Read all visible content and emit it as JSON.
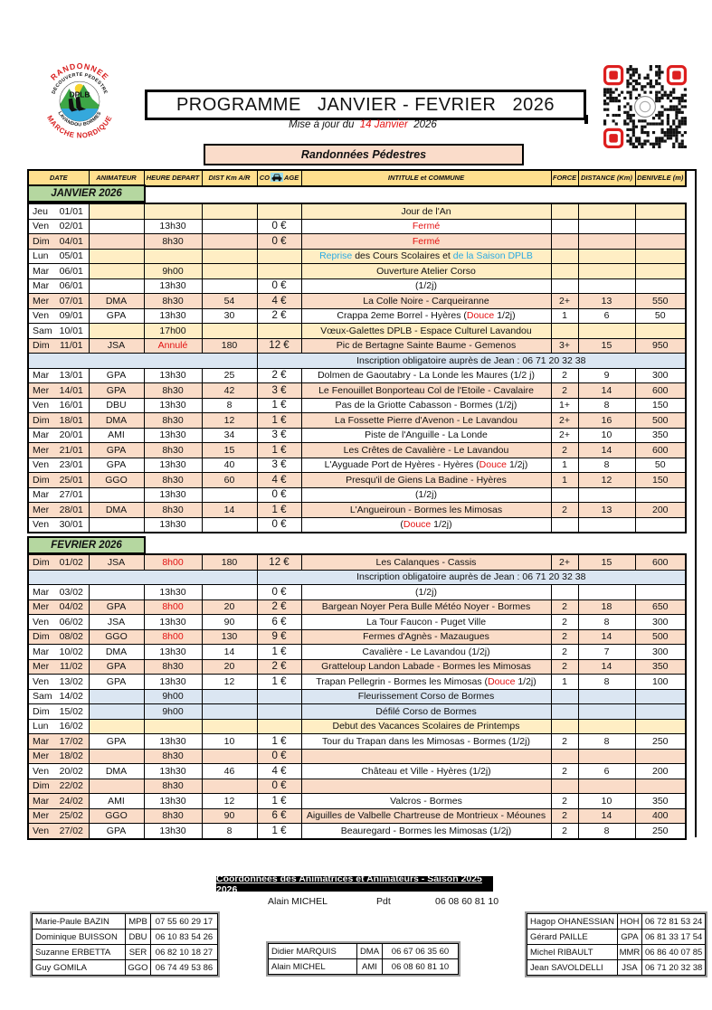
{
  "header": {
    "title": "PROGRAMME   JANVIER - FEVRIER   2026",
    "update_prefix": "Mise à jour du  ",
    "update_date": "14 Janvier",
    "update_year": "  2026",
    "banner": "Randonnées Pédestres",
    "logo": {
      "top": "RANDONNEE",
      "inner_top": "DECOUVERTE PEDESTRE",
      "center": "DPLB",
      "inner_bottom": "LAVANDOU BORMES",
      "bottom": "MARCHE NORDIQUE"
    }
  },
  "colors": {
    "header_gold": "#ffdf8e",
    "row_pink": "#fadcc8",
    "row_cream": "#ffeec4",
    "row_blue": "#dbe6f2",
    "section_green": "#b5d7a0",
    "accent_red": "#e31212",
    "accent_cyan": "#29abe2"
  },
  "table": {
    "columns": {
      "date": "DATE",
      "anim": "ANIMATEUR",
      "heure": "HEURE DEPART",
      "dist": "DIST Km A/R",
      "co_prefix": "CO",
      "co_suffix": "AGE",
      "intitule": "INTITULE et COMMUNE",
      "force": "FORCE",
      "distance": "DISTANCE (Km)",
      "denivele": "DENIVELE (m)"
    },
    "sections": [
      {
        "label": "JANVIER 2026",
        "rows": [
          {
            "day": "Jeu",
            "date": "01/01",
            "bg": "cream",
            "date_bg": "white",
            "anim": "",
            "heure": "",
            "dist": "",
            "euro": "",
            "int": [
              {
                "t": "Jour de l'An"
              }
            ],
            "force": "",
            "km": "",
            "den": ""
          },
          {
            "day": "Ven",
            "date": "02/01",
            "bg": "white",
            "anim": "",
            "heure": "13h30",
            "dist": "",
            "euro": "0 €",
            "int": [
              {
                "t": "Fermé",
                "c": "red"
              }
            ],
            "force": "",
            "km": "",
            "den": ""
          },
          {
            "day": "Dim",
            "date": "04/01",
            "bg": "pink",
            "anim": "",
            "heure": "8h30",
            "dist": "",
            "euro": "0 €",
            "int": [
              {
                "t": "Fermé",
                "c": "red"
              }
            ],
            "force": "",
            "km": "",
            "den": ""
          },
          {
            "day": "Lun",
            "date": "05/01",
            "bg": "cream",
            "date_bg": "white",
            "anim": "",
            "heure": "",
            "dist": "",
            "euro": "",
            "int": [
              {
                "t": "Reprise",
                "c": "cyan"
              },
              {
                "t": " des Cours Scolaires et "
              },
              {
                "t": "de la Saison DPLB",
                "c": "cyan"
              }
            ],
            "force": "",
            "km": "",
            "den": ""
          },
          {
            "day": "Mar",
            "date": "06/01",
            "bg": "cream",
            "date_bg": "white",
            "anim": "",
            "heure": "9h00",
            "dist": "",
            "euro": "",
            "int": [
              {
                "t": "Ouverture Atelier Corso"
              }
            ],
            "force": "",
            "km": "",
            "den": ""
          },
          {
            "day": "Mar",
            "date": "06/01",
            "bg": "white",
            "anim": "",
            "heure": "13h30",
            "dist": "",
            "euro": "0 €",
            "int": [
              {
                "t": "(1/2j)"
              }
            ],
            "force": "",
            "km": "",
            "den": ""
          },
          {
            "day": "Mer",
            "date": "07/01",
            "bg": "pink",
            "anim": "DMA",
            "heure": "8h30",
            "dist": "54",
            "euro": "4 €",
            "int": [
              {
                "t": "La Colle Noire - Carqueiranne"
              }
            ],
            "force": "2+",
            "km": "13",
            "den": "550"
          },
          {
            "day": "Ven",
            "date": "09/01",
            "bg": "white",
            "anim": "GPA",
            "heure": "13h30",
            "dist": "30",
            "euro": "2 €",
            "int": [
              {
                "t": "Crappa 2eme Borrel - Hyères ("
              },
              {
                "t": "Douce",
                "c": "red"
              },
              {
                "t": " 1/2j)"
              }
            ],
            "force": "1",
            "km": "6",
            "den": "50"
          },
          {
            "day": "Sam",
            "date": "10/01",
            "bg": "cream",
            "date_bg": "white",
            "anim": "",
            "heure": "17h00",
            "dist": "",
            "euro": "",
            "int": [
              {
                "t": "Vœux-Galettes DPLB - Espace Culturel Lavandou"
              }
            ],
            "force": "",
            "km": "",
            "den": ""
          },
          {
            "day": "Dim",
            "date": "11/01",
            "bg": "pink",
            "anim": "JSA",
            "heure": "Annulé",
            "heure_red": true,
            "dist": "180",
            "euro": "12 €",
            "int": [
              {
                "t": "Pic de Bertagne Sainte Baume - Gemenos"
              }
            ],
            "force": "3+",
            "km": "15",
            "den": "950"
          },
          {
            "type": "span",
            "text": "Inscription obligatoire auprès de Jean : 06 71 20 32 38"
          },
          {
            "day": "Mar",
            "date": "13/01",
            "bg": "white",
            "anim": "GPA",
            "heure": "13h30",
            "dist": "25",
            "euro": "2 €",
            "int": [
              {
                "t": "Dolmen de Gaoutabry - La Londe les Maures (1/2 j)"
              }
            ],
            "force": "2",
            "km": "9",
            "den": "300"
          },
          {
            "day": "Mer",
            "date": "14/01",
            "bg": "pink",
            "anim": "GPA",
            "heure": "8h30",
            "dist": "42",
            "euro": "3 €",
            "int": [
              {
                "t": "Le Fenouillet Bonporteau Col de l'Etoile - Cavalaire"
              }
            ],
            "force": "2",
            "km": "14",
            "den": "600"
          },
          {
            "day": "Ven",
            "date": "16/01",
            "bg": "white",
            "anim": "DBU",
            "heure": "13h30",
            "dist": "8",
            "euro": "1 €",
            "int": [
              {
                "t": "Pas de la Griotte Cabasson - Bormes (1/2j)"
              }
            ],
            "force": "1+",
            "km": "8",
            "den": "150"
          },
          {
            "day": "Dim",
            "date": "18/01",
            "bg": "pink",
            "anim": "DMA",
            "heure": "8h30",
            "dist": "12",
            "euro": "1 €",
            "int": [
              {
                "t": "La Fossette Pierre d'Avenon - Le Lavandou"
              }
            ],
            "force": "2+",
            "km": "16",
            "den": "500"
          },
          {
            "day": "Mar",
            "date": "20/01",
            "bg": "white",
            "anim": "AMI",
            "heure": "13h30",
            "dist": "34",
            "euro": "3 €",
            "int": [
              {
                "t": "Piste de l'Anguille - La Londe"
              }
            ],
            "force": "2+",
            "km": "10",
            "den": "350"
          },
          {
            "day": "Mer",
            "date": "21/01",
            "bg": "pink",
            "anim": "GPA",
            "heure": "8h30",
            "dist": "15",
            "euro": "1 €",
            "int": [
              {
                "t": "Les Crêtes de Cavalière - Le Lavandou"
              }
            ],
            "force": "2",
            "km": "14",
            "den": "600"
          },
          {
            "day": "Ven",
            "date": "23/01",
            "bg": "white",
            "anim": "GPA",
            "heure": "13h30",
            "dist": "40",
            "euro": "3 €",
            "int": [
              {
                "t": "L'Ayguade Port de Hyères - Hyères ("
              },
              {
                "t": "Douce",
                "c": "red"
              },
              {
                "t": " 1/2j)"
              }
            ],
            "force": "1",
            "km": "8",
            "den": "50"
          },
          {
            "day": "Dim",
            "date": "25/01",
            "bg": "pink",
            "anim": "GGO",
            "heure": "8h30",
            "dist": "60",
            "euro": "4 €",
            "int": [
              {
                "t": "Presqu'il de Giens La Badine - Hyères"
              }
            ],
            "force": "1",
            "km": "12",
            "den": "150"
          },
          {
            "day": "Mar",
            "date": "27/01",
            "bg": "white",
            "anim": "",
            "heure": "13h30",
            "dist": "",
            "euro": "0 €",
            "int": [
              {
                "t": "(1/2j)"
              }
            ],
            "force": "",
            "km": "",
            "den": ""
          },
          {
            "day": "Mer",
            "date": "28/01",
            "bg": "pink",
            "anim": "DMA",
            "heure": "8h30",
            "dist": "14",
            "euro": "1 €",
            "int": [
              {
                "t": "L'Angueiroun - Bormes les Mimosas"
              }
            ],
            "force": "2",
            "km": "13",
            "den": "200"
          },
          {
            "day": "Ven",
            "date": "30/01",
            "bg": "white",
            "anim": "",
            "heure": "13h30",
            "dist": "",
            "euro": "0 €",
            "int": [
              {
                "t": "("
              },
              {
                "t": "Douce",
                "c": "red"
              },
              {
                "t": " 1/2j)"
              }
            ],
            "force": "",
            "km": "",
            "den": ""
          }
        ]
      },
      {
        "label": "FEVRIER 2026",
        "rows": [
          {
            "day": "Dim",
            "date": "01/02",
            "bg": "pink",
            "anim": "JSA",
            "heure": "8h00",
            "heure_red": true,
            "dist": "180",
            "euro": "12 €",
            "int": [
              {
                "t": "Les Calanques - Cassis"
              }
            ],
            "force": "2+",
            "km": "15",
            "den": "600"
          },
          {
            "type": "span",
            "text": "Inscription obligatoire auprès de Jean : 06 71 20 32 38"
          },
          {
            "day": "Mar",
            "date": "03/02",
            "bg": "white",
            "anim": "",
            "heure": "13h30",
            "dist": "",
            "euro": "0 €",
            "int": [
              {
                "t": "(1/2j)"
              }
            ],
            "force": "",
            "km": "",
            "den": ""
          },
          {
            "day": "Mer",
            "date": "04/02",
            "bg": "pink",
            "anim": "GPA",
            "heure": "8h00",
            "heure_red": true,
            "dist": "20",
            "euro": "2 €",
            "int": [
              {
                "t": "Bargean Noyer Pera Bulle Météo Noyer - Bormes"
              }
            ],
            "force": "2",
            "km": "18",
            "den": "650"
          },
          {
            "day": "Ven",
            "date": "06/02",
            "bg": "white",
            "anim": "JSA",
            "heure": "13h30",
            "dist": "90",
            "euro": "6 €",
            "int": [
              {
                "t": "La Tour Faucon - Puget Ville"
              }
            ],
            "force": "2",
            "km": "8",
            "den": "300"
          },
          {
            "day": "Dim",
            "date": "08/02",
            "bg": "pink",
            "anim": "GGO",
            "heure": "8h00",
            "heure_red": true,
            "dist": "130",
            "euro": "9 €",
            "int": [
              {
                "t": "Fermes d'Agnès - Mazaugues"
              }
            ],
            "force": "2",
            "km": "14",
            "den": "500"
          },
          {
            "day": "Mar",
            "date": "10/02",
            "bg": "white",
            "anim": "DMA",
            "heure": "13h30",
            "dist": "14",
            "euro": "1 €",
            "int": [
              {
                "t": "Cavalière - Le Lavandou (1/2j)"
              }
            ],
            "force": "2",
            "km": "7",
            "den": "300"
          },
          {
            "day": "Mer",
            "date": "11/02",
            "bg": "pink",
            "anim": "GPA",
            "heure": "8h30",
            "dist": "20",
            "euro": "2 €",
            "int": [
              {
                "t": "Gratteloup Landon Labade - Bormes les Mimosas"
              }
            ],
            "force": "2",
            "km": "14",
            "den": "350"
          },
          {
            "day": "Ven",
            "date": "13/02",
            "bg": "white",
            "anim": "GPA",
            "heure": "13h30",
            "dist": "12",
            "euro": "1 €",
            "int": [
              {
                "t": "Trapan Pellegrin - Bormes les Mimosas ("
              },
              {
                "t": "Douce",
                "c": "red"
              },
              {
                "t": " 1/2j)"
              }
            ],
            "force": "1",
            "km": "8",
            "den": "100"
          },
          {
            "day": "Sam",
            "date": "14/02",
            "bg": "blue",
            "date_bg": "white",
            "anim": "",
            "heure": "9h00",
            "dist": "",
            "euro": "",
            "int": [
              {
                "t": "Fleurissement Corso de Bormes"
              }
            ],
            "force": "",
            "km": "",
            "den": ""
          },
          {
            "day": "Dim",
            "date": "15/02",
            "bg": "blue",
            "date_bg": "white",
            "anim": "",
            "heure": "9h00",
            "dist": "",
            "euro": "",
            "int": [
              {
                "t": "Défilé Corso de Bormes"
              }
            ],
            "force": "",
            "km": "",
            "den": ""
          },
          {
            "day": "Lun",
            "date": "16/02",
            "bg": "cream",
            "date_bg": "white",
            "anim": "",
            "heure": "",
            "dist": "",
            "euro": "",
            "int": [
              {
                "t": "Debut des Vacances Scolaires de Printemps"
              }
            ],
            "force": "",
            "km": "",
            "den": ""
          },
          {
            "day": "Mar",
            "date": "17/02",
            "bg": "white",
            "date_bg": "pink",
            "anim": "GPA",
            "heure": "13h30",
            "dist": "10",
            "euro": "1 €",
            "int": [
              {
                "t": "Tour du Trapan dans les Mimosas - Bormes (1/2j)"
              }
            ],
            "force": "2",
            "km": "8",
            "den": "250"
          },
          {
            "day": "Mer",
            "date": "18/02",
            "bg": "pink",
            "anim": "",
            "heure": "8h30",
            "dist": "",
            "euro": "0 €",
            "int": [],
            "force": "",
            "km": "",
            "den": ""
          },
          {
            "day": "Ven",
            "date": "20/02",
            "bg": "white",
            "anim": "DMA",
            "heure": "13h30",
            "dist": "46",
            "euro": "4 €",
            "int": [
              {
                "t": "Château et Ville - Hyères (1/2j)"
              }
            ],
            "force": "2",
            "km": "6",
            "den": "200"
          },
          {
            "day": "Dim",
            "date": "22/02",
            "bg": "pink",
            "anim": "",
            "heure": "8h30",
            "dist": "",
            "euro": "0 €",
            "int": [],
            "force": "",
            "km": "",
            "den": ""
          },
          {
            "day": "Mar",
            "date": "24/02",
            "bg": "white",
            "date_bg": "pink",
            "anim": "AMI",
            "heure": "13h30",
            "dist": "12",
            "euro": "1 €",
            "int": [
              {
                "t": "Valcros - Bormes"
              }
            ],
            "force": "2",
            "km": "10",
            "den": "350"
          },
          {
            "day": "Mer",
            "date": "25/02",
            "bg": "pink",
            "anim": "GGO",
            "heure": "8h30",
            "dist": "90",
            "euro": "6 €",
            "int": [
              {
                "t": "Aiguilles de Valbelle Chartreuse de Montrieux - Méounes"
              }
            ],
            "force": "2",
            "km": "14",
            "den": "400"
          },
          {
            "day": "Ven",
            "date": "27/02",
            "bg": "white",
            "date_bg": "pink",
            "anim": "GPA",
            "heure": "13h30",
            "dist": "8",
            "euro": "1 €",
            "int": [
              {
                "t": "Beauregard - Bormes les Mimosas (1/2j)"
              }
            ],
            "force": "2",
            "km": "8",
            "den": "250"
          }
        ]
      }
    ]
  },
  "contacts": {
    "title": "Coordonnées des Animatrices et Animateurs - Saison 2025 2026",
    "president": {
      "name": "Alain MICHEL",
      "role": "Pdt",
      "phone": "06 08 60 81 10"
    },
    "left": [
      {
        "name": "Marie-Paule BAZIN",
        "code": "MPB",
        "phone": "07 55 60 29 17"
      },
      {
        "name": "Dominique BUISSON",
        "code": "DBU",
        "phone": "06 10 83 54 26"
      },
      {
        "name": "Suzanne ERBETTA",
        "code": "SER",
        "phone": "06 82 10 18 27"
      },
      {
        "name": "Guy GOMILA",
        "code": "GGO",
        "phone": "06 74 49 53 86"
      }
    ],
    "middle": [
      {
        "name": "Didier MARQUIS",
        "code": "DMA",
        "phone": "06 67 06 35 60"
      },
      {
        "name": "Alain MICHEL",
        "code": "AMI",
        "phone": "06 08 60 81 10"
      }
    ],
    "right": [
      {
        "name": "Hagop OHANESSIAN",
        "code": "HOH",
        "phone": "06 72 81 53 24"
      },
      {
        "name": "Gérard PAILLE",
        "code": "GPA",
        "phone": "06 81 33 17 54"
      },
      {
        "name": "Michel RIBAULT",
        "code": "MMR",
        "phone": "06 86 40 07 85"
      },
      {
        "name": "Jean SAVOLDELLI",
        "code": "JSA",
        "phone": "06 71 20 32 38"
      }
    ]
  }
}
